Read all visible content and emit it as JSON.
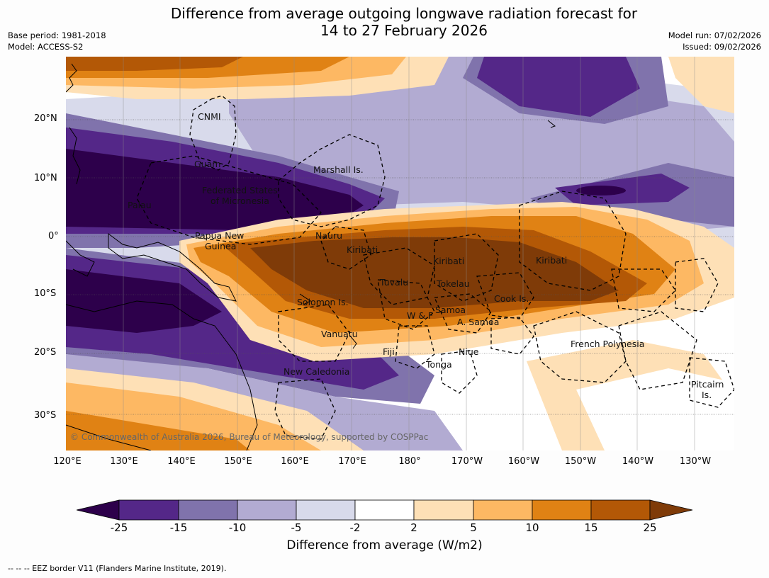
{
  "title_line1": "Difference from average outgoing longwave radiation forecast for",
  "title_line2": "14 to 27 February 2026",
  "base_period": "Base period: 1981-2018",
  "model": "Model: ACCESS-S2",
  "model_run": "Model run: 07/02/2026",
  "issued": "Issued: 09/02/2026",
  "lat_labels": [
    "20°N",
    "10°N",
    "0°",
    "10°S",
    "20°S",
    "30°S"
  ],
  "lon_labels": [
    "120°E",
    "130°E",
    "140°E",
    "150°E",
    "160°E",
    "170°E",
    "180°",
    "170°W",
    "160°W",
    "150°W",
    "140°W",
    "130°W"
  ],
  "places": {
    "cnmi": "CNMI",
    "guam": "Guam",
    "marshall": "Marshall Is.",
    "fsm1": "Federated States",
    "fsm2": "of Micronesia",
    "palau": "Palau",
    "png1": "Papua New",
    "png2": "Guinea",
    "nauru": "Nauru",
    "kiribati_w": "Kiribati",
    "kiribati_c": "Kiribati",
    "kiribati_e": "Kiribati",
    "tuvalu": "Tuvalu",
    "tokelau": "Tokelau",
    "cook": "Cook Is.",
    "solomon": "Solomon Is.",
    "wf": "W & F",
    "samoa": "Samoa",
    "asamoa": "A. Samoa",
    "vanuatu": "Vanuatu",
    "fiji": "Fiji",
    "niue": "Niue",
    "tonga": "Tonga",
    "frpoly": "French Polynesia",
    "newcal": "New Caledonia",
    "pitcairn1": "Pitcairn",
    "pitcairn2": "Is."
  },
  "copyright": "© Commonwealth of Australia 2026, Bureau of Meteorology, supported by COSPPac",
  "colorbar": {
    "ticks": [
      "-25",
      "-15",
      "-10",
      "-5",
      "-2",
      "2",
      "5",
      "10",
      "15",
      "25"
    ],
    "colors": [
      "#2d004b",
      "#542788",
      "#8073ac",
      "#b2abd2",
      "#d8daeb",
      "#ffffff",
      "#fee0b6",
      "#fdb863",
      "#e08214",
      "#b35806",
      "#7f3b08"
    ],
    "label": "Difference from average (W/m2)"
  },
  "footer": "-- -- -- EEZ border V11 (Flanders Marine Institute, 2019)."
}
